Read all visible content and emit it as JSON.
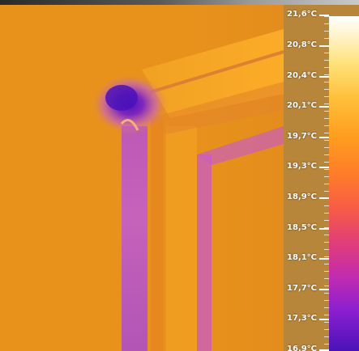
{
  "scale": {
    "unit": "°C",
    "labels": [
      "21,6°C",
      "20,8°C",
      "20,4°C",
      "20,1°C",
      "19,7°C",
      "19,3°C",
      "18,9°C",
      "18,5°C",
      "18,1°C",
      "17,7°C",
      "17,3°C",
      "16,9°C"
    ],
    "palette": [
      "#ffffff",
      "#ffe27a",
      "#ff9d1f",
      "#f65a48",
      "#c12bb0",
      "#4b12b8"
    ]
  },
  "thermal": {
    "base_color": "#e8921c",
    "warm_color": "#f5a21a",
    "cool_color": "#c25bd8",
    "cold_color": "#6d1fb8",
    "edge_color": "#d36b3c"
  }
}
